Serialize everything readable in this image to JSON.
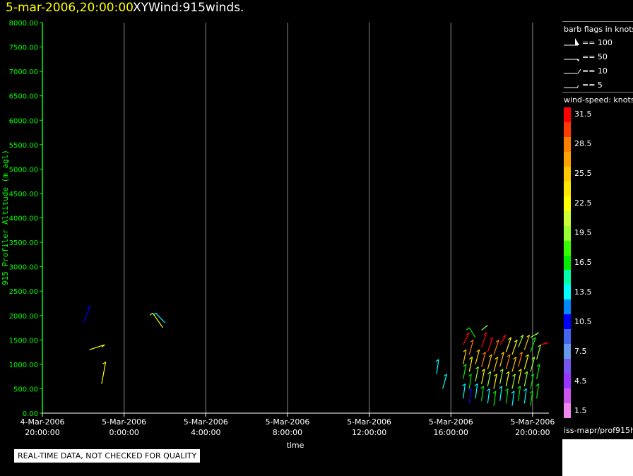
{
  "header": {
    "time_title": "5-mar-2006,20:00:00",
    "product_title": "XYWind:915winds."
  },
  "disclaimer": "REAL-TIME DATA, NOT CHECKED FOR QUALITY",
  "footer_label": "iss-mapr/prof915h",
  "barb_legend": {
    "title": "barb flags in knots",
    "items": [
      {
        "label": "== 100"
      },
      {
        "label": "== 50"
      },
      {
        "label": "== 10"
      },
      {
        "label": "== 5"
      }
    ]
  },
  "colorbar": {
    "title": "wind-speed: knots",
    "bins": [
      {
        "label": "31.5",
        "color": "#ff0000"
      },
      {
        "label": "",
        "color": "#ff3a00"
      },
      {
        "label": "28.5",
        "color": "#ff8000"
      },
      {
        "label": "",
        "color": "#ffa200"
      },
      {
        "label": "25.5",
        "color": "#ffc800"
      },
      {
        "label": "",
        "color": "#ffe600"
      },
      {
        "label": "22.5",
        "color": "#ffff00"
      },
      {
        "label": "",
        "color": "#ccff33"
      },
      {
        "label": "19.5",
        "color": "#99ff33"
      },
      {
        "label": "",
        "color": "#33ff00"
      },
      {
        "label": "16.5",
        "color": "#00ee00"
      },
      {
        "label": "",
        "color": "#00ffaa"
      },
      {
        "label": "13.5",
        "color": "#00ffff"
      },
      {
        "label": "",
        "color": "#0088ff"
      },
      {
        "label": "10.5",
        "color": "#0000ff"
      },
      {
        "label": "",
        "color": "#4466ee"
      },
      {
        "label": "7.5",
        "color": "#6699ee"
      },
      {
        "label": "",
        "color": "#7755ee"
      },
      {
        "label": "4.5",
        "color": "#9933ff"
      },
      {
        "label": "",
        "color": "#cc55ee"
      },
      {
        "label": "1.5",
        "color": "#ee88ee"
      }
    ]
  },
  "chart_data": {
    "type": "scatter",
    "ylabel": "915 Profiler Altitude (m agl)",
    "xlabel": "time",
    "ylim": [
      0,
      8000
    ],
    "yticks": [
      "0.00",
      "500.00",
      "1000.00",
      "1500.00",
      "2000.00",
      "2500.00",
      "3000.00",
      "3500.00",
      "4000.00",
      "4500.00",
      "5000.00",
      "5500.00",
      "6000.00",
      "6500.00",
      "7000.00",
      "7500.00",
      "8000.00"
    ],
    "xlim_hours": [
      0,
      24.8
    ],
    "xticks": [
      {
        "hour": 0,
        "date": "4-Mar-2006",
        "time": "20:00:00"
      },
      {
        "hour": 4,
        "date": "5-Mar-2006",
        "time": "0:00:00"
      },
      {
        "hour": 8,
        "date": "5-Mar-2006",
        "time": "4:00:00"
      },
      {
        "hour": 12,
        "date": "5-Mar-2006",
        "time": "8:00:00"
      },
      {
        "hour": 16,
        "date": "5-Mar-2006",
        "time": "12:00:00"
      },
      {
        "hour": 20,
        "date": "5-Mar-2006",
        "time": "16:00:00"
      },
      {
        "hour": 24,
        "date": "5-Mar-2006",
        "time": "20:00:00"
      }
    ],
    "grid": "vertical",
    "colors": {
      "axis": "#00ff00",
      "grid": "#888888",
      "text": "#ffffff"
    },
    "barbs": [
      {
        "hour": 2.0,
        "alt": 1850,
        "speed": 10,
        "dx": 0.35,
        "dy": 350
      },
      {
        "hour": 2.3,
        "alt": 1300,
        "speed": 22,
        "dx": 0.75,
        "dy": 100
      },
      {
        "hour": 2.9,
        "alt": 600,
        "speed": 22,
        "dx": 0.2,
        "dy": 450
      },
      {
        "hour": 5.9,
        "alt": 1750,
        "speed": 22,
        "dx": -0.5,
        "dy": 300
      },
      {
        "hour": 6.0,
        "alt": 1850,
        "speed": 13,
        "dx": -0.45,
        "dy": 200
      },
      {
        "hour": 19.3,
        "alt": 800,
        "speed": 13,
        "dx": 0.1,
        "dy": 300
      },
      {
        "hour": 19.6,
        "alt": 500,
        "speed": 13,
        "dx": 0.2,
        "dy": 300
      },
      {
        "hour": 20.6,
        "alt": 300,
        "speed": 13,
        "dx": 0.1,
        "dy": 300
      },
      {
        "hour": 20.6,
        "alt": 700,
        "speed": 16,
        "dx": 0.15,
        "dy": 300
      },
      {
        "hour": 20.6,
        "alt": 1000,
        "speed": 25,
        "dx": 0.15,
        "dy": 300
      },
      {
        "hour": 20.6,
        "alt": 1400,
        "speed": 31,
        "dx": 0.3,
        "dy": 250
      },
      {
        "hour": 20.9,
        "alt": 200,
        "speed": 10,
        "dx": 0.1,
        "dy": 300
      },
      {
        "hour": 20.9,
        "alt": 500,
        "speed": 16,
        "dx": 0.1,
        "dy": 300
      },
      {
        "hour": 20.9,
        "alt": 850,
        "speed": 22,
        "dx": 0.15,
        "dy": 300
      },
      {
        "hour": 20.9,
        "alt": 1200,
        "speed": 28,
        "dx": 0.2,
        "dy": 300
      },
      {
        "hour": 21.2,
        "alt": 300,
        "speed": 13,
        "dx": 0.1,
        "dy": 300
      },
      {
        "hour": 21.2,
        "alt": 650,
        "speed": 19,
        "dx": 0.15,
        "dy": 300
      },
      {
        "hour": 21.2,
        "alt": 1000,
        "speed": 25,
        "dx": 0.2,
        "dy": 300
      },
      {
        "hour": 21.2,
        "alt": 1550,
        "speed": 16,
        "dx": -0.3,
        "dy": 200
      },
      {
        "hour": 21.5,
        "alt": 250,
        "speed": 16,
        "dx": 0.1,
        "dy": 300
      },
      {
        "hour": 21.5,
        "alt": 600,
        "speed": 22,
        "dx": 0.15,
        "dy": 300
      },
      {
        "hour": 21.5,
        "alt": 950,
        "speed": 28,
        "dx": 0.2,
        "dy": 300
      },
      {
        "hour": 21.5,
        "alt": 1350,
        "speed": 31,
        "dx": 0.25,
        "dy": 300
      },
      {
        "hour": 21.5,
        "alt": 1700,
        "speed": 19,
        "dx": 0.3,
        "dy": 100
      },
      {
        "hour": 21.8,
        "alt": 200,
        "speed": 13,
        "dx": 0.1,
        "dy": 300
      },
      {
        "hour": 21.8,
        "alt": 550,
        "speed": 19,
        "dx": 0.15,
        "dy": 300
      },
      {
        "hour": 21.8,
        "alt": 900,
        "speed": 25,
        "dx": 0.2,
        "dy": 300
      },
      {
        "hour": 21.8,
        "alt": 1250,
        "speed": 31,
        "dx": 0.25,
        "dy": 300
      },
      {
        "hour": 22.1,
        "alt": 150,
        "speed": 16,
        "dx": 0.1,
        "dy": 300
      },
      {
        "hour": 22.1,
        "alt": 500,
        "speed": 22,
        "dx": 0.15,
        "dy": 300
      },
      {
        "hour": 22.1,
        "alt": 850,
        "speed": 25,
        "dx": 0.2,
        "dy": 300
      },
      {
        "hour": 22.1,
        "alt": 1200,
        "speed": 28,
        "dx": 0.25,
        "dy": 300
      },
      {
        "hour": 22.4,
        "alt": 250,
        "speed": 13,
        "dx": 0.1,
        "dy": 300
      },
      {
        "hour": 22.4,
        "alt": 600,
        "speed": 19,
        "dx": 0.15,
        "dy": 300
      },
      {
        "hour": 22.4,
        "alt": 950,
        "speed": 25,
        "dx": 0.2,
        "dy": 300
      },
      {
        "hour": 22.4,
        "alt": 1400,
        "speed": 31,
        "dx": 0.3,
        "dy": 200
      },
      {
        "hour": 22.7,
        "alt": 200,
        "speed": 16,
        "dx": 0.1,
        "dy": 300
      },
      {
        "hour": 22.7,
        "alt": 550,
        "speed": 22,
        "dx": 0.15,
        "dy": 300
      },
      {
        "hour": 22.7,
        "alt": 900,
        "speed": 28,
        "dx": 0.2,
        "dy": 300
      },
      {
        "hour": 22.7,
        "alt": 1250,
        "speed": 22,
        "dx": 0.25,
        "dy": 300
      },
      {
        "hour": 23.0,
        "alt": 150,
        "speed": 13,
        "dx": 0.1,
        "dy": 300
      },
      {
        "hour": 23.0,
        "alt": 500,
        "speed": 19,
        "dx": 0.15,
        "dy": 300
      },
      {
        "hour": 23.0,
        "alt": 850,
        "speed": 25,
        "dx": 0.2,
        "dy": 300
      },
      {
        "hour": 23.0,
        "alt": 1200,
        "speed": 22,
        "dx": 0.25,
        "dy": 300
      },
      {
        "hour": 23.3,
        "alt": 250,
        "speed": 16,
        "dx": 0.1,
        "dy": 300
      },
      {
        "hour": 23.3,
        "alt": 600,
        "speed": 22,
        "dx": 0.15,
        "dy": 300
      },
      {
        "hour": 23.3,
        "alt": 950,
        "speed": 28,
        "dx": 0.2,
        "dy": 300
      },
      {
        "hour": 23.3,
        "alt": 1350,
        "speed": 19,
        "dx": 0.25,
        "dy": 250
      },
      {
        "hour": 23.6,
        "alt": 200,
        "speed": 13,
        "dx": 0.1,
        "dy": 300
      },
      {
        "hour": 23.6,
        "alt": 550,
        "speed": 19,
        "dx": 0.15,
        "dy": 300
      },
      {
        "hour": 23.6,
        "alt": 900,
        "speed": 22,
        "dx": 0.2,
        "dy": 300
      },
      {
        "hour": 23.6,
        "alt": 1300,
        "speed": 25,
        "dx": 0.25,
        "dy": 300
      },
      {
        "hour": 23.9,
        "alt": 150,
        "speed": 16,
        "dx": 0.1,
        "dy": 300
      },
      {
        "hour": 23.9,
        "alt": 500,
        "speed": 16,
        "dx": 0.15,
        "dy": 300
      },
      {
        "hour": 23.9,
        "alt": 850,
        "speed": 19,
        "dx": 0.2,
        "dy": 300
      },
      {
        "hour": 23.9,
        "alt": 1250,
        "speed": 16,
        "dx": 0.25,
        "dy": 300
      },
      {
        "hour": 23.9,
        "alt": 1550,
        "speed": 19,
        "dx": 0.4,
        "dy": 100
      },
      {
        "hour": 24.2,
        "alt": 300,
        "speed": 16,
        "dx": 0.1,
        "dy": 300
      },
      {
        "hour": 24.2,
        "alt": 700,
        "speed": 16,
        "dx": 0.15,
        "dy": 300
      },
      {
        "hour": 24.2,
        "alt": 1100,
        "speed": 19,
        "dx": 0.2,
        "dy": 300
      },
      {
        "hour": 24.4,
        "alt": 1400,
        "speed": 31,
        "dx": 0.35,
        "dy": 50
      }
    ]
  }
}
